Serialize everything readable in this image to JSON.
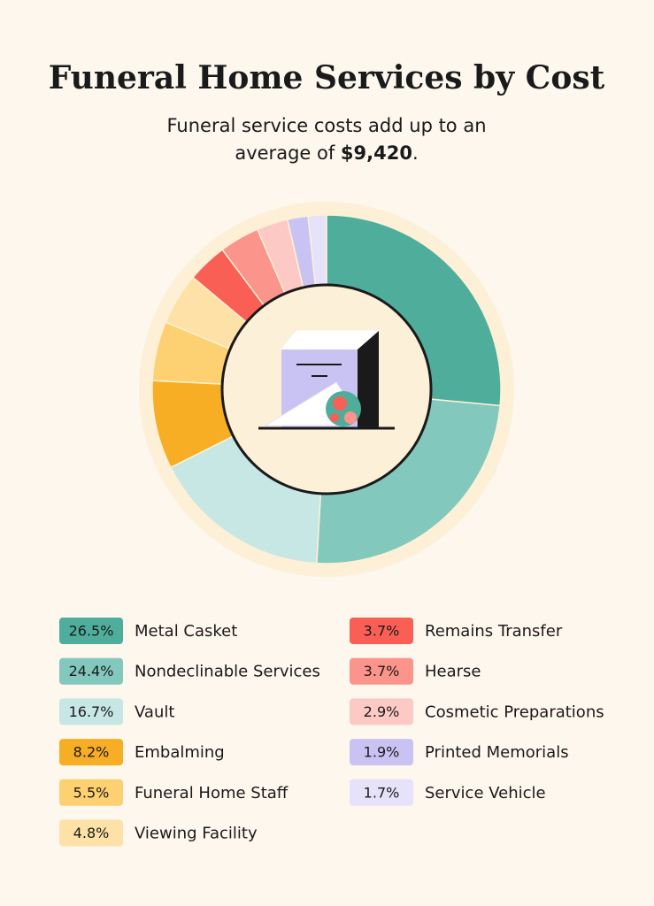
{
  "chart_data": {
    "type": "pie",
    "title": "Funeral Home Services by Cost",
    "subtitle": {
      "lines": [
        "Funeral service costs add up to an",
        "average of"
      ],
      "amount": "$9,420",
      "end": "."
    },
    "categories": [
      "Metal Casket",
      "Nondeclinable Services",
      "Vault",
      "Embalming",
      "Funeral Home Staff",
      "Viewing Facility",
      "Remains Transfer",
      "Hearse",
      "Cosmetic Preparations",
      "Printed Memorials",
      "Service Vehicle"
    ],
    "values": [
      26.5,
      24.4,
      16.7,
      8.2,
      5.5,
      4.8,
      3.7,
      3.7,
      2.9,
      1.9,
      1.7
    ],
    "value_labels": [
      "26.5%",
      "24.4%",
      "16.7%",
      "8.2%",
      "5.5%",
      "4.8%",
      "3.7%",
      "3.7%",
      "2.9%",
      "1.9%",
      "1.7%"
    ],
    "colors": [
      "#4fae9b",
      "#82c8bd",
      "#c7e7e4",
      "#f7ad24",
      "#fdd071",
      "#fde1a6",
      "#fa5f55",
      "#fb948a",
      "#fdc9c4",
      "#c9c3f4",
      "#e5e2fa"
    ]
  }
}
